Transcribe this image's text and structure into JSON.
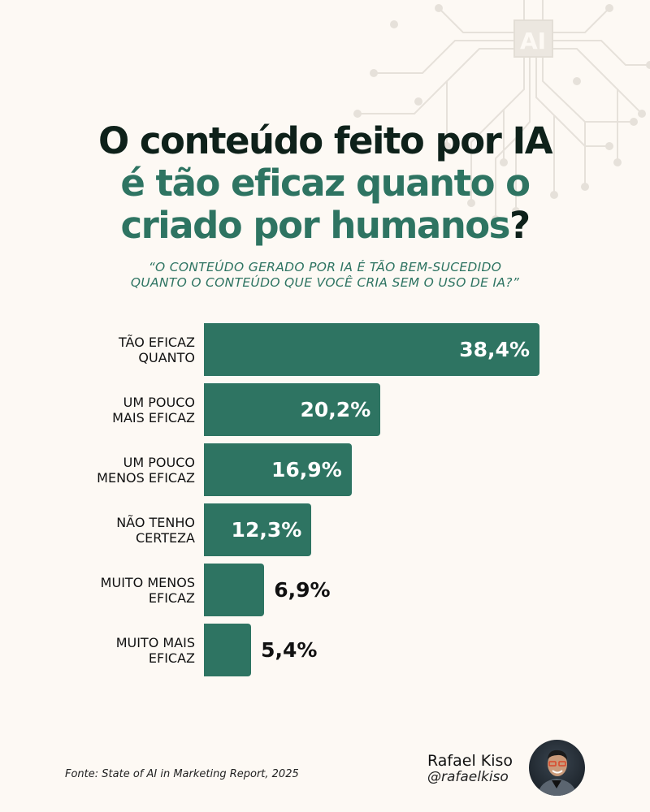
{
  "decoration": {
    "chip_label": "AI"
  },
  "title": {
    "line1": "O conteúdo feito por IA",
    "line2": "é tão eficaz quanto o",
    "line3": "criado por humanos",
    "qmark": "?"
  },
  "subtitle": {
    "line1": "“O CONTEÚDO GERADO POR IA É TÃO BEM-SUCEDIDO",
    "line2": "QUANTO O CONTEÚDO QUE VOCÊ CRIA SEM O USO DE IA?”"
  },
  "colors": {
    "bar": "#2e7462",
    "background": "#fdf9f4",
    "title_dark": "#0e211a",
    "title_green": "#2e7462"
  },
  "chart_data": {
    "type": "bar",
    "orientation": "horizontal",
    "categories": [
      [
        "TÃO EFICAZ",
        "QUANTO"
      ],
      [
        "UM POUCO",
        "MAIS EFICAZ"
      ],
      [
        "UM POUCO",
        "MENOS EFICAZ"
      ],
      [
        "NÃO TENHO",
        "CERTEZA"
      ],
      [
        "MUITO MENOS",
        "EFICAZ"
      ],
      [
        "MUITO MAIS",
        "EFICAZ"
      ]
    ],
    "values": [
      38.4,
      20.2,
      16.9,
      12.3,
      6.9,
      5.4
    ],
    "labels": [
      "38,4%",
      "20,2%",
      "16,9%",
      "12,3%",
      "6,9%",
      "5,4%"
    ],
    "unit": "%",
    "grid": false
  },
  "footer": {
    "source": "Fonte: State of AI in Marketing Report, 2025",
    "author": "Rafael Kiso",
    "handle": "@rafaelkiso"
  }
}
